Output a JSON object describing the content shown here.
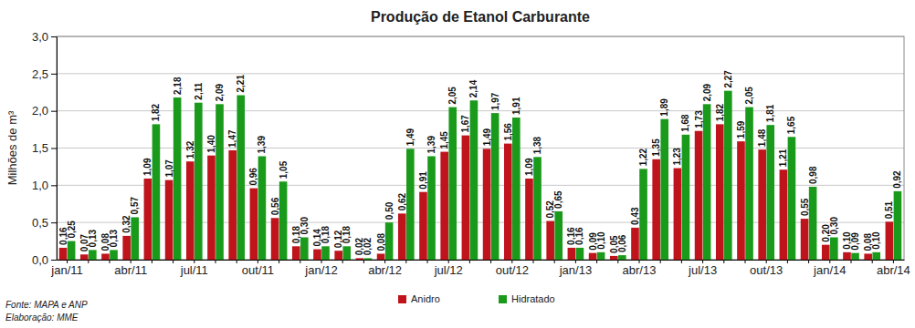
{
  "chart_data": {
    "type": "bar",
    "title": "Produção de Etanol Carburante",
    "y_label": "Milhões de m³",
    "annotations": [
      "Fonte: MAPA e ANP",
      "Elaboração: MME"
    ],
    "categories": [
      "jan/11",
      null,
      null,
      "abr/11",
      null,
      null,
      "jul/11",
      null,
      null,
      "out/11",
      null,
      null,
      "jan/12",
      null,
      null,
      "abr/12",
      null,
      null,
      "jul/12",
      null,
      null,
      "out/12",
      null,
      null,
      "jan/13",
      null,
      null,
      "abr/13",
      null,
      null,
      "jul/13",
      null,
      null,
      "out/13",
      null,
      null,
      "jan/14",
      null,
      null,
      "abr/14"
    ],
    "series": [
      {
        "name": "Anidro",
        "color": "#c0141c",
        "values": [
          0.16,
          0.07,
          0.08,
          0.32,
          1.09,
          1.07,
          1.32,
          1.4,
          1.47,
          0.96,
          0.56,
          0.18,
          0.14,
          0.12,
          0.02,
          0.08,
          0.62,
          0.91,
          1.45,
          1.67,
          1.49,
          1.56,
          1.09,
          0.52,
          0.16,
          0.09,
          0.05,
          0.43,
          1.35,
          1.23,
          1.73,
          1.82,
          1.59,
          1.48,
          1.21,
          0.55,
          0.2,
          0.1,
          0.08,
          0.51
        ],
        "value_labels": [
          "0,16",
          "0,07",
          "0,08",
          "0,32",
          "1,09",
          "1,07",
          "1,32",
          "1,40",
          "1,47",
          "0,96",
          "0,56",
          "0,18",
          "0,14",
          "0,12",
          "0,02",
          "0,08",
          "0,62",
          "0,91",
          "1,45",
          "1,67",
          "1,49",
          "1,56",
          "1,09",
          "0,52",
          "0,16",
          "0,09",
          "0,05",
          "0,43",
          "1,35",
          "1,23",
          "1,73",
          "1,82",
          "1,59",
          "1,48",
          "1,21",
          "0,55",
          "0,20",
          "0,10",
          "0,08",
          "0,51"
        ]
      },
      {
        "name": "Hidratado",
        "color": "#1a9a1a",
        "values": [
          0.25,
          0.13,
          0.13,
          0.57,
          1.82,
          2.18,
          2.11,
          2.09,
          2.21,
          1.39,
          1.05,
          0.3,
          0.18,
          0.18,
          0.02,
          0.5,
          1.49,
          1.39,
          2.05,
          2.14,
          1.97,
          1.91,
          1.38,
          0.65,
          0.16,
          0.1,
          0.06,
          1.22,
          1.89,
          1.68,
          2.09,
          2.27,
          2.05,
          1.81,
          1.65,
          0.98,
          0.3,
          0.09,
          0.1,
          0.92
        ],
        "value_labels": [
          "0,25",
          "0,13",
          "0,13",
          "0,57",
          "1,82",
          "2,18",
          "2,11",
          "2,09",
          "2,21",
          "1,39",
          "1,05",
          "0,30",
          "0,18",
          "0,18",
          "0,02",
          "0,50",
          "1,49",
          "1,39",
          "2,05",
          "2,14",
          "1,97",
          "1,91",
          "1,38",
          "0,65",
          "0,16",
          "0,10",
          "0,06",
          "1,22",
          "1,89",
          "1,68",
          "2,09",
          "2,27",
          "2,05",
          "1,81",
          "1,65",
          "0,98",
          "0,30",
          "0,09",
          "0,10",
          "0,92"
        ]
      }
    ],
    "ylim": [
      0,
      3
    ],
    "yticks": [
      {
        "value": 0,
        "label": "0,0"
      },
      {
        "value": 0.5,
        "label": "0,5"
      },
      {
        "value": 1,
        "label": "1,0"
      },
      {
        "value": 1.5,
        "label": "1,5"
      },
      {
        "value": 2,
        "label": "2,0"
      },
      {
        "value": 2.5,
        "label": "2,5"
      },
      {
        "value": 3,
        "label": "3,0"
      }
    ],
    "grid": true,
    "data_labels": true,
    "legend": "bottom"
  }
}
